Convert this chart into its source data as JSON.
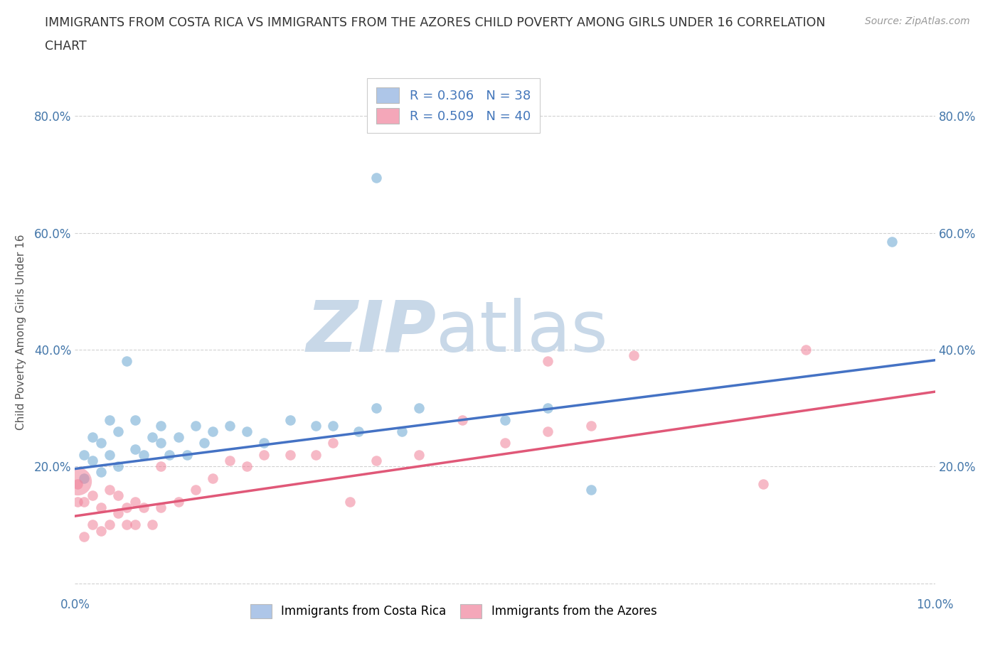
{
  "title_line1": "IMMIGRANTS FROM COSTA RICA VS IMMIGRANTS FROM THE AZORES CHILD POVERTY AMONG GIRLS UNDER 16 CORRELATION",
  "title_line2": "CHART",
  "source_text": "Source: ZipAtlas.com",
  "ylabel": "Child Poverty Among Girls Under 16",
  "xlim": [
    0.0,
    0.1
  ],
  "ylim": [
    -0.02,
    0.88
  ],
  "xtick_positions": [
    0.0,
    0.02,
    0.04,
    0.06,
    0.08,
    0.1
  ],
  "xticklabels": [
    "0.0%",
    "",
    "",
    "",
    "",
    "10.0%"
  ],
  "ytick_positions": [
    0.0,
    0.2,
    0.4,
    0.6,
    0.8
  ],
  "yticklabels": [
    "",
    "20.0%",
    "40.0%",
    "60.0%",
    "80.0%"
  ],
  "legend_color1": "#aec6e8",
  "legend_color2": "#f4a7b9",
  "scatter_color1": "#7eb3d8",
  "scatter_color2": "#f08098",
  "line_color1": "#4472C4",
  "line_color2": "#E05878",
  "watermark_zip_color": "#c8d8e8",
  "watermark_atlas_color": "#c8d8e8",
  "background_color": "#ffffff",
  "grid_color": "#cccccc",
  "tick_color": "#4477aa",
  "cr_line_x0": 0.0,
  "cr_line_y0": 0.196,
  "cr_line_x1": 0.1,
  "cr_line_y1": 0.382,
  "az_line_x0": 0.0,
  "az_line_y0": 0.115,
  "az_line_x1": 0.1,
  "az_line_y1": 0.328,
  "costa_rica_x": [
    0.001,
    0.001,
    0.002,
    0.002,
    0.003,
    0.003,
    0.004,
    0.004,
    0.005,
    0.005,
    0.006,
    0.007,
    0.007,
    0.008,
    0.009,
    0.01,
    0.01,
    0.011,
    0.012,
    0.013,
    0.014,
    0.015,
    0.016,
    0.018,
    0.02,
    0.022,
    0.025,
    0.028,
    0.03,
    0.033,
    0.035,
    0.038,
    0.04,
    0.05,
    0.055,
    0.06,
    0.095,
    0.035
  ],
  "costa_rica_y": [
    0.22,
    0.18,
    0.25,
    0.21,
    0.24,
    0.19,
    0.22,
    0.28,
    0.2,
    0.26,
    0.38,
    0.23,
    0.28,
    0.22,
    0.25,
    0.24,
    0.27,
    0.22,
    0.25,
    0.22,
    0.27,
    0.24,
    0.26,
    0.27,
    0.26,
    0.24,
    0.28,
    0.27,
    0.27,
    0.26,
    0.3,
    0.26,
    0.3,
    0.28,
    0.3,
    0.16,
    0.585,
    0.695
  ],
  "azores_x": [
    0.0003,
    0.0003,
    0.001,
    0.001,
    0.002,
    0.002,
    0.003,
    0.003,
    0.004,
    0.004,
    0.005,
    0.005,
    0.006,
    0.006,
    0.007,
    0.007,
    0.008,
    0.009,
    0.01,
    0.01,
    0.012,
    0.014,
    0.016,
    0.018,
    0.02,
    0.022,
    0.025,
    0.028,
    0.03,
    0.032,
    0.035,
    0.04,
    0.045,
    0.05,
    0.055,
    0.055,
    0.06,
    0.065,
    0.08,
    0.085
  ],
  "azores_y": [
    0.17,
    0.14,
    0.08,
    0.14,
    0.1,
    0.15,
    0.09,
    0.13,
    0.1,
    0.16,
    0.12,
    0.15,
    0.1,
    0.13,
    0.1,
    0.14,
    0.13,
    0.1,
    0.13,
    0.2,
    0.14,
    0.16,
    0.18,
    0.21,
    0.2,
    0.22,
    0.22,
    0.22,
    0.24,
    0.14,
    0.21,
    0.22,
    0.28,
    0.24,
    0.38,
    0.26,
    0.27,
    0.39,
    0.17,
    0.4
  ],
  "azores_large_x": [
    0.0003
  ],
  "azores_large_y": [
    0.175
  ],
  "azores_large_s": [
    800
  ]
}
